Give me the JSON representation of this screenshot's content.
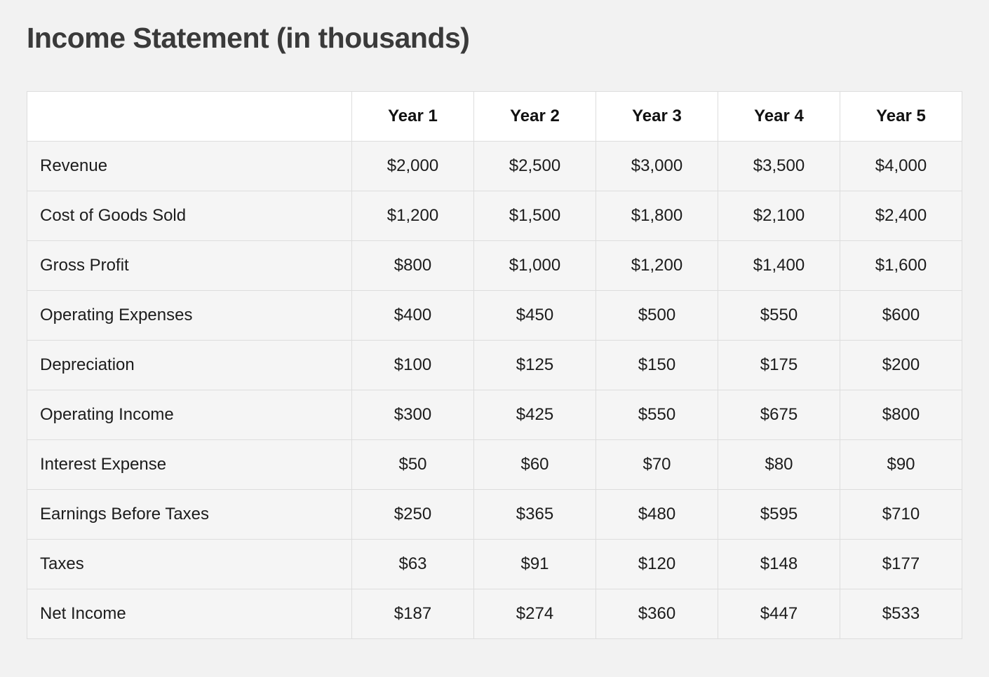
{
  "page": {
    "title": "Income Statement (in thousands)"
  },
  "colors": {
    "page_background": "#f2f2f2",
    "header_background": "#ffffff",
    "row_background": "#f5f5f5",
    "border": "#dddddd",
    "title_text": "#3a3a3a",
    "cell_text": "#1c1c1c"
  },
  "chart_data": {
    "type": "table",
    "title": "Income Statement (in thousands)",
    "columns": [
      "",
      "Year 1",
      "Year 2",
      "Year 3",
      "Year 4",
      "Year 5"
    ],
    "rows": [
      {
        "label": "Revenue",
        "values": [
          "$2,000",
          "$2,500",
          "$3,000",
          "$3,500",
          "$4,000"
        ]
      },
      {
        "label": "Cost of Goods Sold",
        "values": [
          "$1,200",
          "$1,500",
          "$1,800",
          "$2,100",
          "$2,400"
        ]
      },
      {
        "label": "Gross Profit",
        "values": [
          "$800",
          "$1,000",
          "$1,200",
          "$1,400",
          "$1,600"
        ]
      },
      {
        "label": "Operating Expenses",
        "values": [
          "$400",
          "$450",
          "$500",
          "$550",
          "$600"
        ]
      },
      {
        "label": "Depreciation",
        "values": [
          "$100",
          "$125",
          "$150",
          "$175",
          "$200"
        ]
      },
      {
        "label": "Operating Income",
        "values": [
          "$300",
          "$425",
          "$550",
          "$675",
          "$800"
        ]
      },
      {
        "label": "Interest Expense",
        "values": [
          "$50",
          "$60",
          "$70",
          "$80",
          "$90"
        ]
      },
      {
        "label": "Earnings Before Taxes",
        "values": [
          "$250",
          "$365",
          "$480",
          "$595",
          "$710"
        ]
      },
      {
        "label": "Taxes",
        "values": [
          "$63",
          "$91",
          "$120",
          "$148",
          "$177"
        ]
      },
      {
        "label": "Net Income",
        "values": [
          "$187",
          "$274",
          "$360",
          "$447",
          "$533"
        ]
      }
    ],
    "values_numeric": {
      "Revenue": [
        2000,
        2500,
        3000,
        3500,
        4000
      ],
      "Cost of Goods Sold": [
        1200,
        1500,
        1800,
        2100,
        2400
      ],
      "Gross Profit": [
        800,
        1000,
        1200,
        1400,
        1600
      ],
      "Operating Expenses": [
        400,
        450,
        500,
        550,
        600
      ],
      "Depreciation": [
        100,
        125,
        150,
        175,
        200
      ],
      "Operating Income": [
        300,
        425,
        550,
        675,
        800
      ],
      "Interest Expense": [
        50,
        60,
        70,
        80,
        90
      ],
      "Earnings Before Taxes": [
        250,
        365,
        480,
        595,
        710
      ],
      "Taxes": [
        63,
        91,
        120,
        148,
        177
      ],
      "Net Income": [
        187,
        274,
        360,
        447,
        533
      ]
    }
  }
}
